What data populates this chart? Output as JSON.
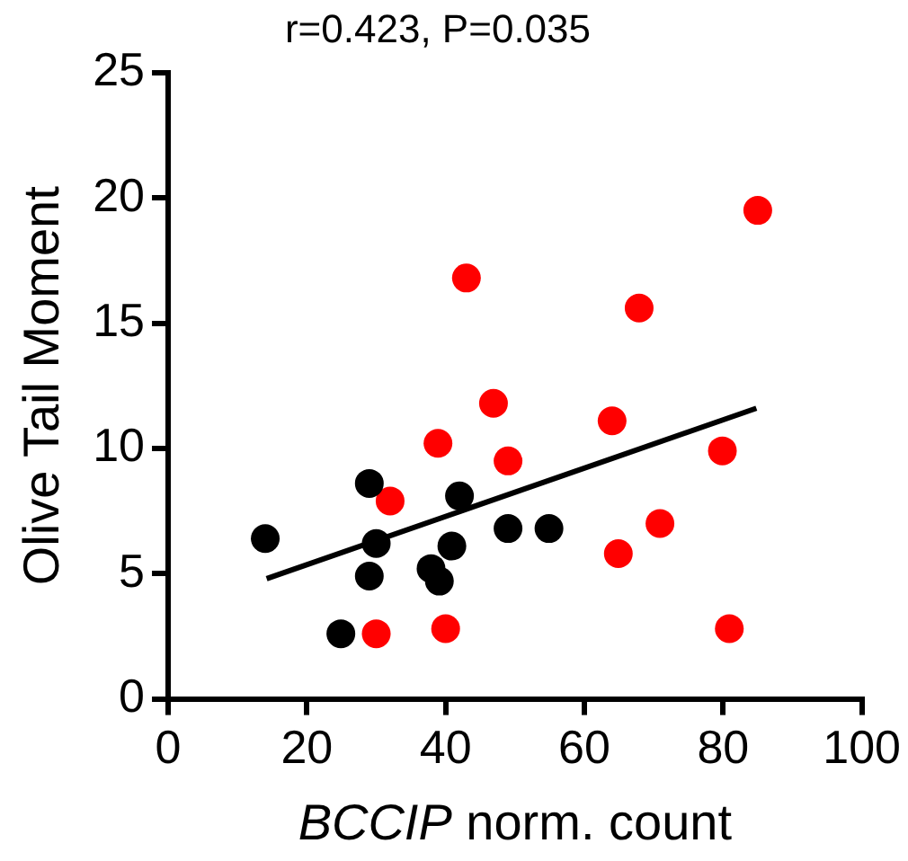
{
  "chart_data": {
    "type": "scatter",
    "title": "r=0.423, P=0.035",
    "xlabel": "BCCIP norm. count",
    "ylabel": "Olive Tail Moment",
    "xlim": [
      0,
      100
    ],
    "xticks": [
      0,
      20,
      40,
      60,
      80,
      100
    ],
    "ylim": [
      0,
      25
    ],
    "yticks": [
      0,
      5,
      10,
      15,
      20,
      25
    ],
    "grid": false,
    "legend": false,
    "marker": "circle",
    "series": [
      {
        "type": "line",
        "marker": "none",
        "color": "#000000",
        "x": [
          14.2,
          84.8
        ],
        "values": [
          4.8,
          11.6
        ]
      },
      {
        "color": "#000000",
        "x": [
          14.0,
          29.0,
          30.0,
          29.0,
          24.9,
          37.9,
          39.1,
          40.9,
          42.0,
          49.0,
          54.9
        ],
        "values": [
          6.4,
          8.6,
          6.2,
          4.9,
          2.6,
          5.2,
          4.7,
          6.1,
          8.1,
          6.8,
          6.8
        ]
      },
      {
        "color": "#ff0000",
        "x": [
          85.0,
          43.0,
          67.9,
          46.9,
          64.0,
          38.9,
          49.0,
          79.9,
          32.0,
          70.9,
          64.9,
          30.0,
          40.0,
          80.9
        ],
        "values": [
          19.5,
          16.8,
          15.6,
          11.8,
          11.1,
          10.2,
          9.5,
          9.9,
          7.9,
          7.0,
          5.8,
          2.6,
          2.8,
          2.8
        ]
      }
    ]
  }
}
